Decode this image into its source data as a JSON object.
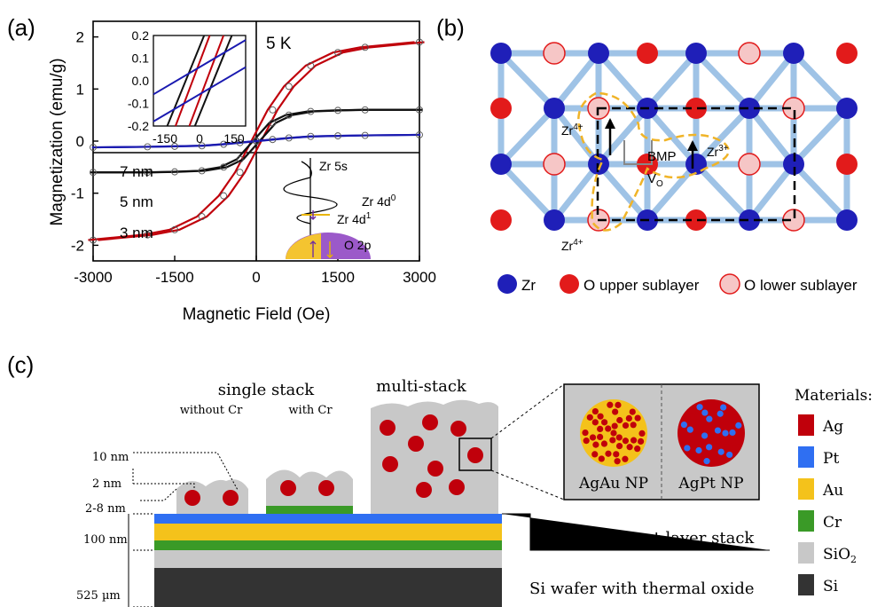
{
  "panel_labels": {
    "a": "(a)",
    "b": "(b)",
    "c": "(c)"
  },
  "panel_a": {
    "temperature": "5 K",
    "sizes": [
      "7 nm",
      "5 nm",
      "3 nm"
    ],
    "energy_levels": [
      "Zr 5s",
      "Zr 4d",
      "Zr 4d",
      "O 2p"
    ],
    "energy_sup": [
      "0",
      "1"
    ]
  },
  "panel_b": {
    "labels": {
      "zr4_top": "Zr",
      "zr4_bottom": "Zr",
      "zr3": "Zr",
      "bmp": "BMP",
      "vo": "V",
      "vo_sub": "O",
      "sup4": "4+",
      "sup3": "3+"
    },
    "legend": [
      "Zr",
      "O upper sublayer",
      "O lower sublayer"
    ],
    "colors": {
      "zr": "#1f1fb8",
      "o_upper": "#e21b1b",
      "o_lower": "#f6c6c6",
      "bond": "#9fc3e6"
    }
  },
  "panel_c": {
    "titles": {
      "single": "single stack",
      "without": "without Cr",
      "with": "with Cr",
      "multi": "multi-stack"
    },
    "dims": [
      "10 nm",
      "2 nm",
      "2-8 nm",
      "100 nm",
      "525 µm"
    ],
    "np_labels": [
      "AgAu NP",
      "AgPt NP"
    ],
    "layer_labels": {
      "back": "back contact layer stack",
      "wafer": "Si wafer with thermal oxide"
    },
    "legend_title": "Materials:",
    "legend": [
      {
        "name": "Ag",
        "color": "#c0000b"
      },
      {
        "name": "Pt",
        "color": "#2f6ff2"
      },
      {
        "name": "Au",
        "color": "#f4c21b"
      },
      {
        "name": "Cr",
        "color": "#3a9a27"
      },
      {
        "name": "SiO",
        "sub": "2",
        "color": "#c8c8c8"
      },
      {
        "name": "Si",
        "color": "#333333"
      }
    ]
  },
  "chart_data": {
    "type": "line",
    "title": "",
    "xlabel": "Magnetic Field (Oe)",
    "ylabel": "Magnetization (emu/g)",
    "xlim": [
      -3000,
      3000
    ],
    "ylim": [
      -2.3,
      2.3
    ],
    "xticks": [
      -3000,
      -1500,
      0,
      1500,
      3000
    ],
    "yticks": [
      -2,
      -1,
      0,
      1,
      2
    ],
    "x": [
      -3000,
      -2000,
      -1500,
      -1000,
      -600,
      -300,
      0,
      300,
      600,
      1000,
      1500,
      2000,
      3000
    ],
    "series": [
      {
        "name": "3 nm",
        "values": [
          -1.9,
          -1.8,
          -1.7,
          -1.45,
          -1.05,
          -0.6,
          0,
          0.6,
          1.05,
          1.45,
          1.7,
          1.8,
          1.9
        ]
      },
      {
        "name": "5 nm",
        "values": [
          -0.6,
          -0.6,
          -0.59,
          -0.57,
          -0.5,
          -0.35,
          0,
          0.35,
          0.5,
          0.57,
          0.59,
          0.6,
          0.6
        ]
      },
      {
        "name": "7 nm",
        "values": [
          -0.12,
          -0.11,
          -0.1,
          -0.09,
          -0.06,
          -0.03,
          0,
          0.03,
          0.06,
          0.09,
          0.1,
          0.11,
          0.12
        ]
      }
    ],
    "inset": {
      "xlim": [
        -200,
        200
      ],
      "ylim": [
        -0.2,
        0.2
      ],
      "xticks": [
        -150,
        0,
        150
      ],
      "yticks": [
        -0.2,
        -0.1,
        0.0,
        0.1,
        0.2
      ]
    }
  }
}
